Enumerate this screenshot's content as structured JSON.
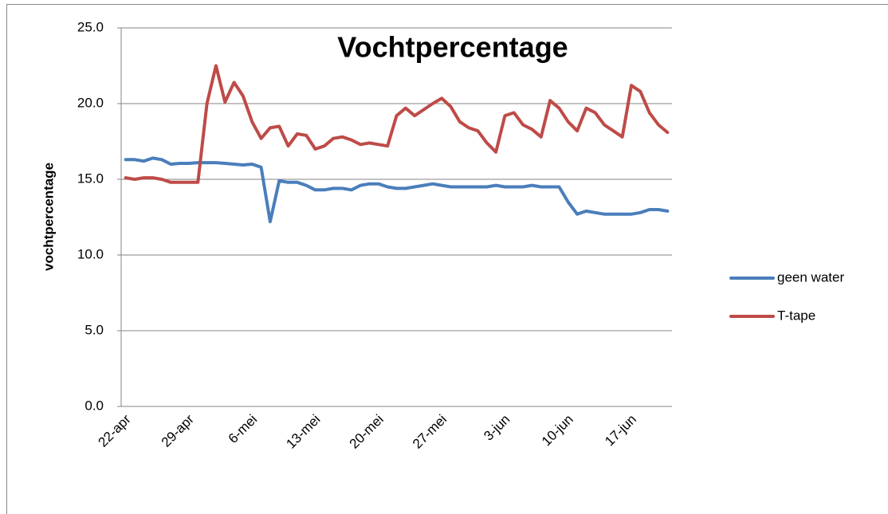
{
  "chart_data": {
    "type": "line",
    "title": "Vochtpercentage",
    "y_label": "vochtpercentage",
    "categories": [
      "22-apr",
      null,
      null,
      null,
      null,
      null,
      null,
      "29-apr",
      null,
      null,
      null,
      null,
      null,
      null,
      "6-mei",
      null,
      null,
      null,
      null,
      null,
      null,
      "13-mei",
      null,
      null,
      null,
      null,
      null,
      null,
      "20-mei",
      null,
      null,
      null,
      null,
      null,
      null,
      "27-mei",
      null,
      null,
      null,
      null,
      null,
      null,
      "3-jun",
      null,
      null,
      null,
      null,
      null,
      null,
      "10-jun",
      null,
      null,
      null,
      null,
      null,
      null,
      "17-jun",
      null,
      null,
      null,
      null
    ],
    "series": [
      {
        "name": "geen water",
        "color": "#4a7ebb",
        "values": [
          16.3,
          16.3,
          16.2,
          16.4,
          16.3,
          16.0,
          16.05,
          16.05,
          16.1,
          16.1,
          16.1,
          16.05,
          16.0,
          15.95,
          16.0,
          15.8,
          12.2,
          14.9,
          14.8,
          14.8,
          14.6,
          14.3,
          14.3,
          14.4,
          14.4,
          14.3,
          14.6,
          14.7,
          14.7,
          14.5,
          14.4,
          14.4,
          14.5,
          14.6,
          14.7,
          14.6,
          14.5,
          14.5,
          14.5,
          14.5,
          14.5,
          14.6,
          14.5,
          14.5,
          14.5,
          14.6,
          14.5,
          14.5,
          14.5,
          13.5,
          12.7,
          12.9,
          12.8,
          12.7,
          12.7,
          12.7,
          12.7,
          12.8,
          13.0,
          13.0,
          12.9
        ]
      },
      {
        "name": "T-tape",
        "color": "#be4b48",
        "values": [
          15.1,
          15.0,
          15.1,
          15.1,
          15.0,
          14.8,
          14.8,
          14.8,
          14.8,
          20.0,
          22.5,
          20.1,
          21.4,
          20.5,
          18.8,
          17.7,
          18.4,
          18.5,
          17.2,
          18.0,
          17.9,
          17.0,
          17.2,
          17.7,
          17.8,
          17.6,
          17.3,
          17.4,
          17.3,
          17.2,
          19.2,
          19.7,
          19.2,
          19.6,
          20.0,
          20.35,
          19.8,
          18.8,
          18.4,
          18.2,
          17.4,
          16.8,
          19.2,
          19.4,
          18.6,
          18.3,
          17.8,
          20.2,
          19.7,
          18.8,
          18.2,
          19.7,
          19.4,
          18.6,
          18.2,
          17.8,
          21.2,
          20.8,
          19.4,
          18.6,
          18.1
        ]
      }
    ],
    "ylim": [
      0,
      25
    ],
    "yticks": [
      {
        "value": 0,
        "label": "0.0"
      },
      {
        "value": 5,
        "label": "5.0"
      },
      {
        "value": 10,
        "label": "10.0"
      },
      {
        "value": 15,
        "label": "15.0"
      },
      {
        "value": 20,
        "label": "20.0"
      },
      {
        "value": 25,
        "label": "25.0"
      }
    ],
    "grid": true,
    "legend": "right"
  }
}
